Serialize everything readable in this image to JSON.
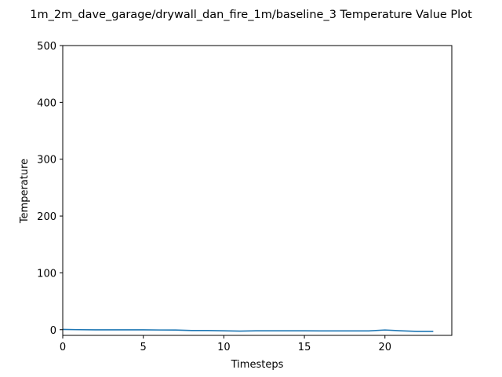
{
  "chart_data": {
    "type": "line",
    "title": "1m_2m_dave_garage/drywall_dan_fire_1m/baseline_3 Temperature Value Plot",
    "xlabel": "Timesteps",
    "ylabel": "Temperature",
    "xlim": [
      0,
      24.15
    ],
    "ylim": [
      -10,
      500
    ],
    "xticks": [
      0,
      5,
      10,
      15,
      20
    ],
    "yticks": [
      0,
      100,
      200,
      300,
      400,
      500
    ],
    "grid": false,
    "series": [
      {
        "color": "#1f77b4",
        "x": [
          0,
          1,
          2,
          3,
          4,
          5,
          6,
          7,
          8,
          9,
          10,
          11,
          12,
          13,
          14,
          15,
          16,
          17,
          18,
          19,
          20,
          21,
          22,
          23
        ],
        "y": [
          0.5,
          0,
          -0.2,
          -0.3,
          -0.3,
          -0.3,
          -0.5,
          -0.6,
          -1.5,
          -1.5,
          -2,
          -2.5,
          -2,
          -2,
          -2,
          -2,
          -2.2,
          -2.2,
          -2.2,
          -2.2,
          -0.5,
          -2,
          -3,
          -3
        ]
      }
    ]
  }
}
